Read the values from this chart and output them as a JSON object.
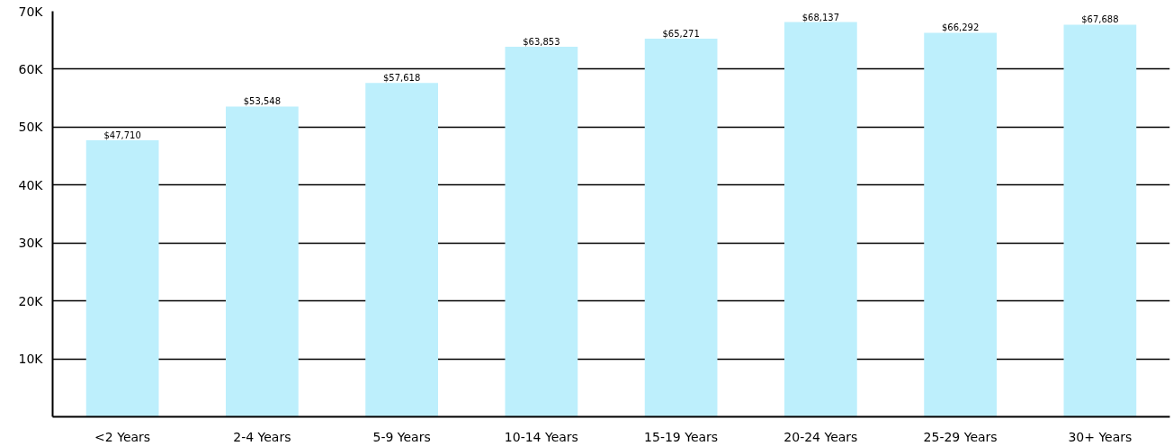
{
  "chart_data": {
    "type": "bar",
    "categories": [
      "<2 Years",
      "2-4 Years",
      "5-9 Years",
      "10-14 Years",
      "15-19 Years",
      "20-24 Years",
      "25-29 Years",
      "30+ Years"
    ],
    "values": [
      47710,
      53548,
      57618,
      63853,
      65271,
      68137,
      66292,
      67688
    ],
    "value_labels": [
      "$47,710",
      "$53,548",
      "$57,618",
      "$63,853",
      "$65,271",
      "$68,137",
      "$66,292",
      "$67,688"
    ],
    "color": "#bdeffc",
    "ylim": [
      0,
      70000
    ],
    "yticks": [
      {
        "value": 10000,
        "label": "10K"
      },
      {
        "value": 20000,
        "label": "20K"
      },
      {
        "value": 30000,
        "label": "30K"
      },
      {
        "value": 40000,
        "label": "40K"
      },
      {
        "value": 50000,
        "label": "50K"
      },
      {
        "value": 60000,
        "label": "60K"
      },
      {
        "value": 70000,
        "label": "70K"
      }
    ],
    "grid": "y"
  }
}
